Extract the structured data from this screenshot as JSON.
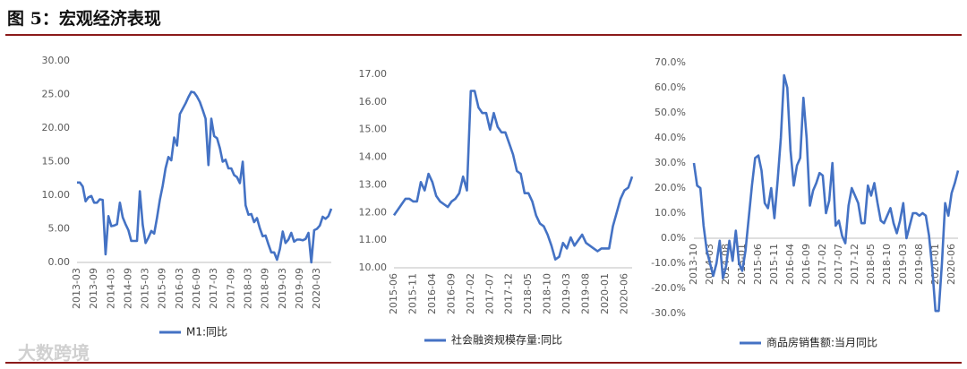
{
  "title": "图 5：宏观经济表现",
  "watermark": "大数跨境",
  "chart_data": [
    {
      "type": "line",
      "categories": [
        "2013-03",
        null,
        null,
        null,
        null,
        null,
        "2013-09",
        null,
        null,
        null,
        null,
        null,
        "2014-03",
        null,
        null,
        null,
        null,
        null,
        "2014-09",
        null,
        null,
        null,
        null,
        null,
        "2015-03",
        null,
        null,
        null,
        null,
        null,
        "2015-09",
        null,
        null,
        null,
        null,
        null,
        "2016-03",
        null,
        null,
        null,
        null,
        null,
        "2016-09",
        null,
        null,
        null,
        null,
        null,
        "2017-03",
        null,
        null,
        null,
        null,
        null,
        "2017-09",
        null,
        null,
        null,
        null,
        null,
        "2018-03",
        null,
        null,
        null,
        null,
        null,
        "2018-09",
        null,
        null,
        null,
        null,
        null,
        "2019-03",
        null,
        null,
        null,
        null,
        null,
        "2019-09",
        null,
        null,
        null,
        null,
        null,
        "2020-03",
        null,
        null,
        null,
        null,
        null
      ],
      "series": [
        {
          "name": "M1:同比",
          "color": "#4472c4",
          "values": [
            11.9,
            11.9,
            11.3,
            9.1,
            9.7,
            9.9,
            8.9,
            8.9,
            9.4,
            9.3,
            1.2,
            6.9,
            5.4,
            5.5,
            5.7,
            8.9,
            6.7,
            5.7,
            4.8,
            3.2,
            3.2,
            3.2,
            10.6,
            5.6,
            2.9,
            3.7,
            4.7,
            4.3,
            6.6,
            9.3,
            11.4,
            14.0,
            15.7,
            15.2,
            18.6,
            17.4,
            22.1,
            22.9,
            23.7,
            24.6,
            25.4,
            25.3,
            24.7,
            23.9,
            22.7,
            21.4,
            14.5,
            21.4,
            18.8,
            18.5,
            17.0,
            15.0,
            15.3,
            14.0,
            14.0,
            13.0,
            12.7,
            11.8,
            15.0,
            8.5,
            7.1,
            7.2,
            6.0,
            6.6,
            5.1,
            3.9,
            4.0,
            2.7,
            1.5,
            1.5,
            0.4,
            2.0,
            4.6,
            2.9,
            3.4,
            4.4,
            3.1,
            3.4,
            3.4,
            3.3,
            3.5,
            4.4,
            0.0,
            4.8,
            5.0,
            5.5,
            6.8,
            6.5,
            6.9,
            8.0
          ]
        }
      ],
      "ylim": [
        0,
        30
      ],
      "yticks": [
        {
          "value": 0,
          "label": "0.00"
        },
        {
          "value": 5,
          "label": "5.00"
        },
        {
          "value": 10,
          "label": "10.00"
        },
        {
          "value": 15,
          "label": "15.00"
        },
        {
          "value": 20,
          "label": "20.00"
        },
        {
          "value": 25,
          "label": "25.00"
        },
        {
          "value": 30,
          "label": "30.00"
        }
      ]
    },
    {
      "type": "line",
      "categories": [
        "2015-06",
        null,
        null,
        null,
        null,
        "2015-11",
        null,
        null,
        null,
        null,
        "2016-04",
        null,
        null,
        null,
        null,
        "2016-09",
        null,
        null,
        null,
        null,
        "2017-02",
        null,
        null,
        null,
        null,
        "2017-07",
        null,
        null,
        null,
        null,
        "2017-12",
        null,
        null,
        null,
        null,
        "2018-05",
        null,
        null,
        null,
        null,
        "2018-10",
        null,
        null,
        null,
        null,
        "2019-03",
        null,
        null,
        null,
        null,
        "2019-08",
        null,
        null,
        null,
        null,
        "2020-01",
        null,
        null,
        null,
        null,
        "2020-06",
        null,
        null
      ],
      "series": [
        {
          "name": "社会融资规模存量:同比",
          "color": "#4472c4",
          "values": [
            11.9,
            12.1,
            12.3,
            12.5,
            12.5,
            12.4,
            12.4,
            13.1,
            12.8,
            13.4,
            13.1,
            12.6,
            12.4,
            12.3,
            12.2,
            12.4,
            12.5,
            12.7,
            13.3,
            12.8,
            16.4,
            16.4,
            15.8,
            15.6,
            15.6,
            15.0,
            15.6,
            15.1,
            14.9,
            14.9,
            14.5,
            14.1,
            13.5,
            13.4,
            12.7,
            12.7,
            12.4,
            11.9,
            11.6,
            11.5,
            11.2,
            10.8,
            10.3,
            10.4,
            10.9,
            10.7,
            11.1,
            10.8,
            11.0,
            11.2,
            10.9,
            10.8,
            10.7,
            10.6,
            10.7,
            10.7,
            10.7,
            11.5,
            12.0,
            12.5,
            12.8,
            12.9,
            13.3
          ]
        }
      ],
      "ylim": [
        10,
        17
      ],
      "yticks": [
        {
          "value": 10,
          "label": "10.00"
        },
        {
          "value": 11,
          "label": "11.00"
        },
        {
          "value": 12,
          "label": "12.00"
        },
        {
          "value": 13,
          "label": "13.00"
        },
        {
          "value": 14,
          "label": "14.00"
        },
        {
          "value": 15,
          "label": "15.00"
        },
        {
          "value": 16,
          "label": "16.00"
        },
        {
          "value": 17,
          "label": "17.00"
        }
      ]
    },
    {
      "type": "line",
      "categories": [
        "2013-10",
        null,
        null,
        null,
        null,
        "2014-03",
        null,
        null,
        null,
        null,
        "2014-08",
        null,
        null,
        null,
        null,
        "2015-01",
        null,
        null,
        null,
        null,
        "2015-06",
        null,
        null,
        null,
        null,
        "2015-11",
        null,
        null,
        null,
        null,
        "2016-04",
        null,
        null,
        null,
        null,
        "2016-09",
        null,
        null,
        null,
        null,
        "2017-02",
        null,
        null,
        null,
        null,
        "2017-07",
        null,
        null,
        null,
        null,
        "2017-12",
        null,
        null,
        null,
        null,
        "2018-05",
        null,
        null,
        null,
        null,
        "2018-10",
        null,
        null,
        null,
        null,
        "2019-03",
        null,
        null,
        null,
        null,
        "2019-08",
        null,
        null,
        null,
        null,
        "2020-01",
        null,
        null,
        null,
        null,
        "2020-06",
        null,
        null
      ],
      "series": [
        {
          "name": "商品房销售额:当月同比",
          "color": "#4472c4",
          "values": [
            30,
            21,
            20,
            5,
            -5,
            -10,
            -15,
            -10,
            -1,
            -16,
            -11,
            -1,
            -9,
            3,
            -10,
            -13,
            -5,
            8,
            21,
            32,
            33,
            27,
            14,
            12,
            20,
            8,
            23,
            40,
            65,
            60,
            35,
            21,
            29,
            32,
            56,
            40,
            13,
            19,
            22,
            26,
            25,
            10,
            15,
            30,
            5,
            7,
            1,
            -2,
            13,
            20,
            17,
            14,
            6,
            6,
            21,
            17,
            22,
            14,
            7,
            6,
            9,
            12,
            6,
            2,
            7,
            14,
            0,
            5,
            10,
            10,
            9,
            10,
            9,
            1,
            -12,
            -29,
            -29,
            -10,
            14,
            9,
            18,
            22,
            27
          ]
        }
      ],
      "ylim": [
        -30,
        70
      ],
      "yticks": [
        {
          "value": -30,
          "label": "-30.0%"
        },
        {
          "value": -20,
          "label": "-20.0%"
        },
        {
          "value": -10,
          "label": "-10.0%"
        },
        {
          "value": 0,
          "label": "0.0%"
        },
        {
          "value": 10,
          "label": "10.0%"
        },
        {
          "value": 20,
          "label": "20.0%"
        },
        {
          "value": 30,
          "label": "30.0%"
        },
        {
          "value": 40,
          "label": "40.0%"
        },
        {
          "value": 50,
          "label": "50.0%"
        },
        {
          "value": 60,
          "label": "60.0%"
        },
        {
          "value": 70,
          "label": "70.0%"
        }
      ]
    }
  ]
}
